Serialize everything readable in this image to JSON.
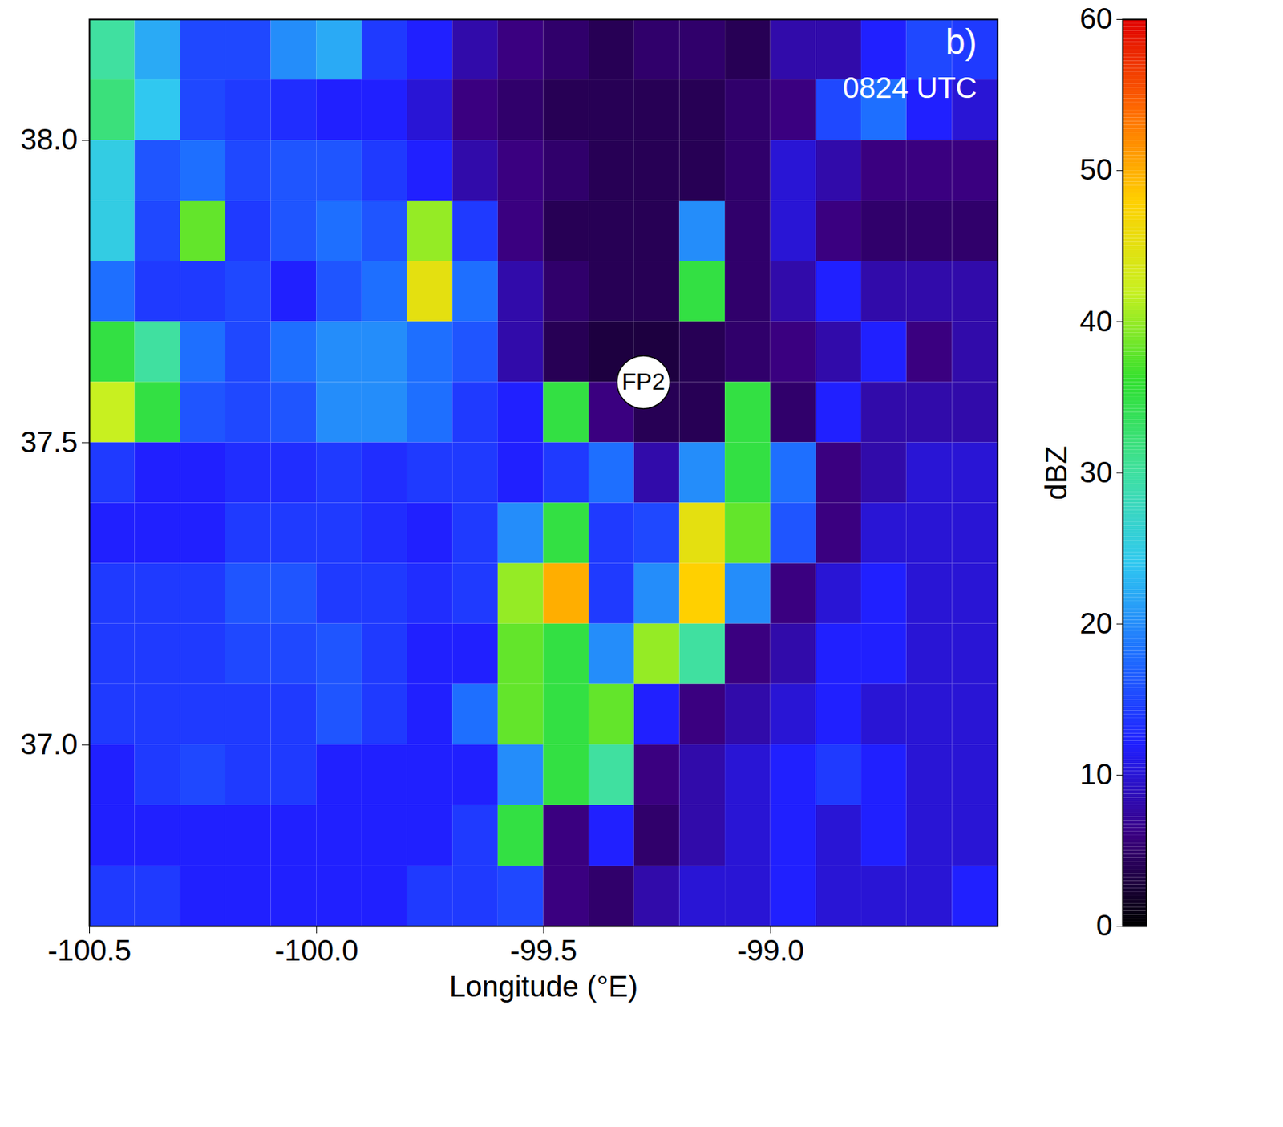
{
  "chart_data": {
    "type": "heatmap",
    "panel_label": "b)",
    "time_label": "0824 UTC",
    "xlabel": "Longitude (°E)",
    "xlim": [
      -100.5,
      -98.5
    ],
    "ylim": [
      36.7,
      38.2
    ],
    "xticks": [
      -100.5,
      {
        "value": -100,
        "label": "-100.0"
      },
      -99.5,
      {
        "value": -99,
        "label": "-99.0"
      }
    ],
    "yticks": [
      {
        "value": 37,
        "label": "37.0"
      },
      37.5,
      {
        "value": 38,
        "label": "38.0"
      }
    ],
    "annotations": [
      {
        "text": "FP2",
        "lon": -99.28,
        "lat": 37.6
      }
    ],
    "cells": {
      "lon": [
        -100.45,
        -100.35,
        -100.25,
        -100.15,
        -100.05,
        -99.95,
        -99.85,
        -99.75,
        -99.65,
        -99.55,
        -99.45,
        -99.35,
        -99.25,
        -99.15,
        -99.05,
        -98.95,
        -98.85,
        -98.75,
        -98.65,
        -98.55
      ],
      "lat": [
        38.15,
        38.05,
        37.95,
        37.85,
        37.75,
        37.65,
        37.55,
        37.45,
        37.35,
        37.25,
        37.15,
        37.05,
        36.95,
        36.85,
        36.75
      ],
      "values": [
        [
          30,
          22,
          15,
          15,
          20,
          22,
          14,
          12,
          8,
          6,
          5,
          4,
          5,
          5,
          4,
          8,
          8,
          12,
          15,
          14
        ],
        [
          32,
          24,
          15,
          14,
          13,
          12,
          12,
          10,
          6,
          5,
          4,
          4,
          4,
          4,
          5,
          6,
          15,
          18,
          12,
          10
        ],
        [
          25,
          16,
          18,
          15,
          16,
          16,
          14,
          12,
          8,
          6,
          5,
          4,
          4,
          4,
          5,
          10,
          8,
          6,
          6,
          6
        ],
        [
          25,
          15,
          38,
          14,
          16,
          18,
          16,
          40,
          14,
          6,
          4,
          4,
          4,
          20,
          5,
          10,
          6,
          5,
          5,
          5
        ],
        [
          18,
          14,
          14,
          15,
          12,
          16,
          18,
          45,
          18,
          8,
          5,
          4,
          4,
          35,
          5,
          8,
          12,
          8,
          8,
          8
        ],
        [
          35,
          30,
          18,
          15,
          18,
          20,
          20,
          18,
          16,
          8,
          4,
          3,
          3,
          4,
          5,
          6,
          8,
          12,
          6,
          8
        ],
        [
          42,
          35,
          16,
          15,
          16,
          20,
          20,
          18,
          14,
          12,
          35,
          6,
          4,
          4,
          35,
          5,
          12,
          8,
          8,
          8
        ],
        [
          14,
          12,
          12,
          13,
          13,
          14,
          13,
          14,
          14,
          12,
          14,
          18,
          8,
          20,
          35,
          18,
          6,
          8,
          10,
          10
        ],
        [
          12,
          12,
          12,
          14,
          14,
          14,
          13,
          12,
          14,
          20,
          35,
          14,
          15,
          45,
          38,
          16,
          6,
          10,
          10,
          10
        ],
        [
          14,
          14,
          14,
          16,
          16,
          14,
          14,
          13,
          14,
          40,
          50,
          14,
          20,
          48,
          20,
          6,
          10,
          12,
          10,
          10
        ],
        [
          14,
          14,
          14,
          15,
          15,
          16,
          14,
          12,
          12,
          38,
          35,
          20,
          40,
          30,
          6,
          8,
          12,
          12,
          10,
          10
        ],
        [
          14,
          14,
          14,
          14,
          14,
          16,
          14,
          12,
          18,
          38,
          35,
          38,
          12,
          6,
          8,
          10,
          12,
          10,
          10,
          10
        ],
        [
          12,
          14,
          15,
          14,
          14,
          12,
          12,
          12,
          12,
          20,
          35,
          30,
          6,
          8,
          10,
          12,
          14,
          12,
          10,
          10
        ],
        [
          12,
          12,
          12,
          12,
          12,
          12,
          12,
          12,
          14,
          35,
          6,
          12,
          5,
          8,
          10,
          12,
          10,
          12,
          10,
          10
        ],
        [
          14,
          14,
          12,
          12,
          12,
          12,
          12,
          14,
          14,
          15,
          6,
          5,
          8,
          10,
          10,
          12,
          10,
          10,
          10,
          12
        ]
      ]
    },
    "colorbar": {
      "label": "dBZ",
      "range": [
        0,
        60
      ],
      "ticks": [
        0,
        10,
        20,
        30,
        40,
        50,
        60
      ]
    }
  }
}
